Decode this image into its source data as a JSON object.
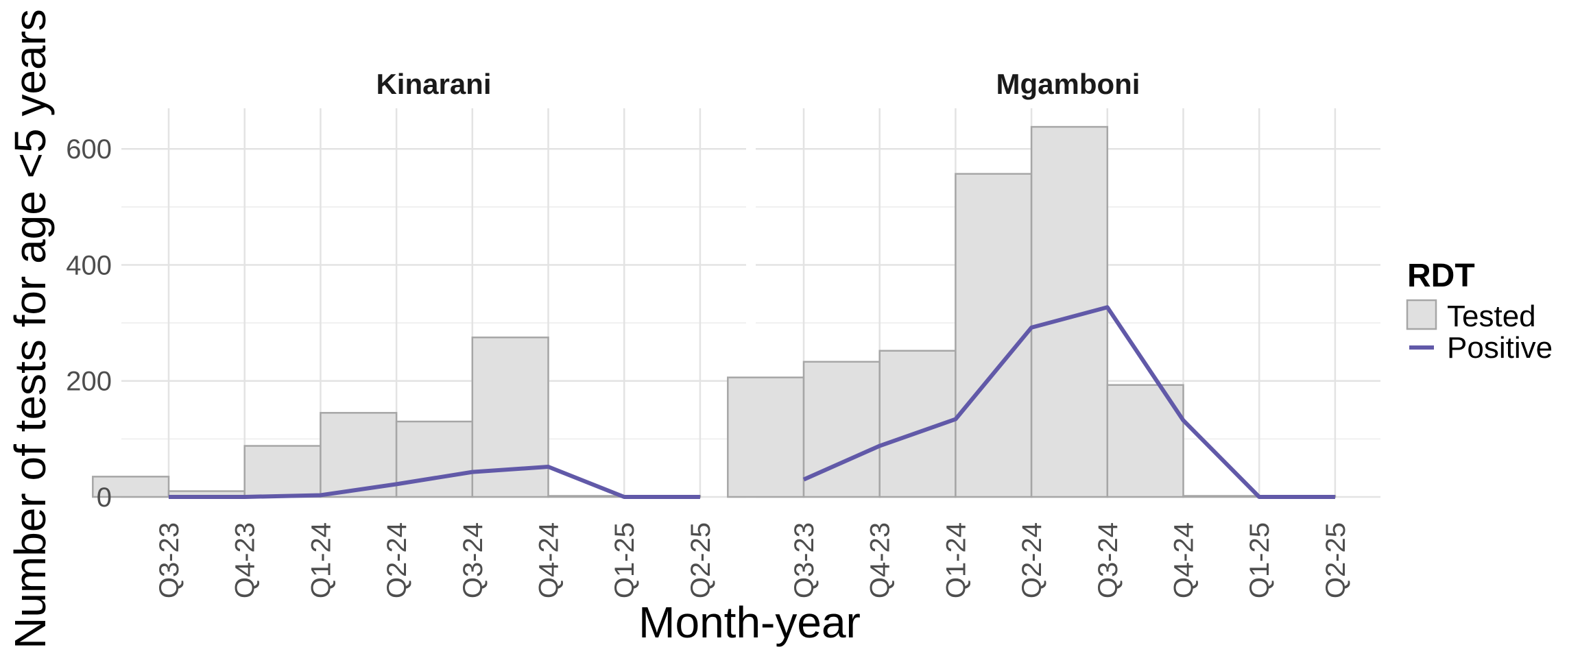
{
  "chart_data": {
    "type": "bar",
    "xlabel": "Month-year",
    "ylabel": "Number of tests for age <5 years",
    "ylim": [
      0,
      670
    ],
    "y_ticks": [
      0,
      200,
      400,
      600
    ],
    "categories": [
      "Q3-23",
      "Q4-23",
      "Q1-24",
      "Q2-24",
      "Q3-24",
      "Q4-24",
      "Q1-25",
      "Q2-25"
    ],
    "grid": true,
    "legend": {
      "title": "RDT",
      "position": "right",
      "items": [
        {
          "label": "Tested",
          "kind": "bar",
          "color": "#e0e0e0"
        },
        {
          "label": "Positive",
          "kind": "line",
          "color": "#6159a8"
        }
      ]
    },
    "panels": [
      {
        "name": "Kinarani",
        "series": [
          {
            "name": "Tested",
            "type": "bar",
            "values": [
              35,
              10,
              88,
              145,
              130,
              275,
              0,
              0
            ]
          },
          {
            "name": "Positive",
            "type": "line",
            "values": [
              0,
              0,
              3,
              22,
              43,
              52,
              0,
              0
            ]
          }
        ]
      },
      {
        "name": "Mgamboni",
        "series": [
          {
            "name": "Tested",
            "type": "bar",
            "values": [
              206,
              233,
              252,
              557,
              638,
              193,
              0,
              0
            ]
          },
          {
            "name": "Positive",
            "type": "line",
            "values": [
              30,
              88,
              134,
              292,
              327,
              132,
              0,
              0
            ]
          }
        ]
      }
    ]
  }
}
